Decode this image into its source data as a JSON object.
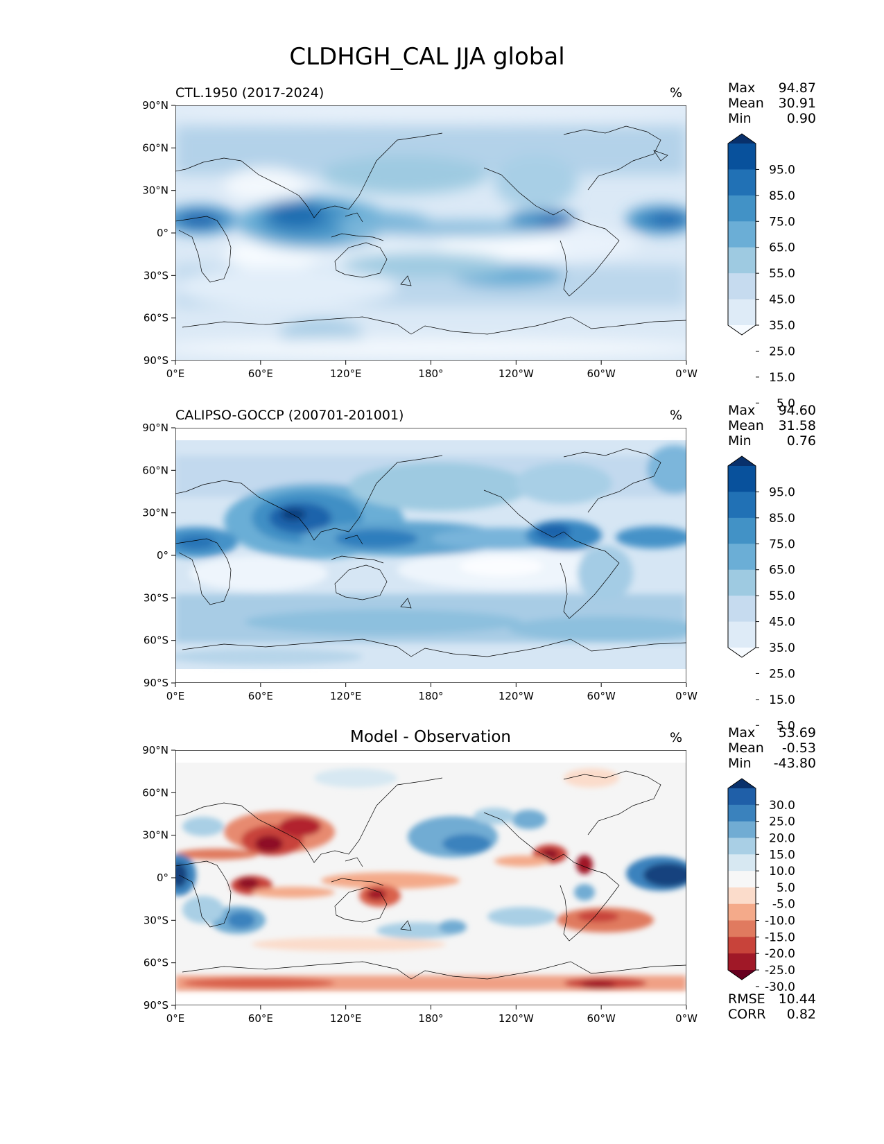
{
  "title": "CLDHGH_CAL JJA global",
  "lat_ticks": [
    "90°N",
    "60°N",
    "30°N",
    "0°",
    "30°S",
    "60°S",
    "90°S"
  ],
  "lon_ticks": [
    "0°E",
    "60°E",
    "120°E",
    "180°",
    "120°W",
    "60°W",
    "0°W"
  ],
  "panels": [
    {
      "id": "model",
      "title": "CTL.1950 (2017-2024)",
      "units": "%",
      "stats": [
        {
          "label": "Max",
          "value": "94.87"
        },
        {
          "label": "Mean",
          "value": "30.91"
        },
        {
          "label": "Min",
          "value": "0.90"
        }
      ],
      "colorbar": {
        "labels": [
          "95.0",
          "85.0",
          "75.0",
          "65.0",
          "55.0",
          "45.0",
          "35.0",
          "25.0",
          "15.0",
          "5.0"
        ],
        "colors": [
          "#08306b",
          "#08519c",
          "#2171b5",
          "#4292c6",
          "#6baed6",
          "#9ecae1",
          "#c6dbef",
          "#deebf7",
          "#f7fbff"
        ]
      }
    },
    {
      "id": "obs",
      "title": "CALIPSO-GOCCP (200701-201001)",
      "units": "%",
      "stats": [
        {
          "label": "Max",
          "value": "94.60"
        },
        {
          "label": "Mean",
          "value": "31.58"
        },
        {
          "label": "Min",
          "value": "0.76"
        }
      ],
      "colorbar": {
        "labels": [
          "95.0",
          "85.0",
          "75.0",
          "65.0",
          "55.0",
          "45.0",
          "35.0",
          "25.0",
          "15.0",
          "5.0"
        ],
        "colors": [
          "#08306b",
          "#08519c",
          "#2171b5",
          "#4292c6",
          "#6baed6",
          "#9ecae1",
          "#c6dbef",
          "#deebf7",
          "#f7fbff"
        ]
      }
    },
    {
      "id": "diff",
      "title": "Model - Observation",
      "units": "%",
      "stats": [
        {
          "label": "Max",
          "value": "53.69"
        },
        {
          "label": "Mean",
          "value": "-0.53"
        },
        {
          "label": "Min",
          "value": "-43.80"
        }
      ],
      "extra_stats": [
        {
          "label": "RMSE",
          "value": "10.44"
        },
        {
          "label": "CORR",
          "value": "0.82"
        }
      ],
      "colorbar": {
        "labels": [
          "30.0",
          "25.0",
          "20.0",
          "15.0",
          "10.0",
          "5.0",
          "-5.0",
          "-10.0",
          "-15.0",
          "-20.0",
          "-25.0",
          "-30.0"
        ],
        "colors": [
          "#08306b",
          "#1f5fa8",
          "#3a82bd",
          "#71acd3",
          "#a9cfe5",
          "#d7e8f2",
          "#f7f7f7",
          "#fbdccb",
          "#f4aa8a",
          "#e07a5f",
          "#c8433a",
          "#a01827",
          "#67001f"
        ]
      }
    }
  ],
  "chart_data": [
    {
      "type": "heatmap",
      "title": "CTL.1950 (2017-2024)",
      "variable": "CLDHGH_CAL",
      "units": "%",
      "x_range": [
        0,
        360
      ],
      "y_range": [
        -90,
        90
      ],
      "levels": [
        5,
        15,
        25,
        35,
        45,
        55,
        65,
        75,
        85,
        95
      ],
      "features": [
        {
          "lon": 105,
          "lat": 12,
          "value": 85
        },
        {
          "lon": 20,
          "lat": 5,
          "value": 75
        },
        {
          "lon": 285,
          "lat": 8,
          "value": 70
        },
        {
          "lon": 345,
          "lat": 5,
          "value": 75
        },
        {
          "lon": 150,
          "lat": 5,
          "value": 60
        },
        {
          "lon": 220,
          "lat": -25,
          "value": 45
        },
        {
          "lon": 90,
          "lat": -20,
          "value": 15
        },
        {
          "lon": 200,
          "lat": 0,
          "value": 15
        },
        {
          "lon": 180,
          "lat": 50,
          "value": 40
        },
        {
          "lon": 60,
          "lat": 25,
          "value": 10
        }
      ]
    },
    {
      "type": "heatmap",
      "title": "CALIPSO-GOCCP (200701-201001)",
      "variable": "CLDHGH_CAL",
      "units": "%",
      "x_range": [
        0,
        360
      ],
      "y_range": [
        -90,
        90
      ],
      "levels": [
        5,
        15,
        25,
        35,
        45,
        55,
        65,
        75,
        85,
        95
      ],
      "features": [
        {
          "lon": 95,
          "lat": 20,
          "value": 85
        },
        {
          "lon": 20,
          "lat": 8,
          "value": 70
        },
        {
          "lon": 280,
          "lat": 10,
          "value": 70
        },
        {
          "lon": 150,
          "lat": 8,
          "value": 65
        },
        {
          "lon": 210,
          "lat": 8,
          "value": 55
        },
        {
          "lon": 225,
          "lat": -5,
          "value": 15
        },
        {
          "lon": 100,
          "lat": -45,
          "value": 40
        },
        {
          "lon": 40,
          "lat": -15,
          "value": 15
        }
      ]
    },
    {
      "type": "heatmap",
      "title": "Model - Observation",
      "variable": "CLDHGH_CAL difference",
      "units": "%",
      "x_range": [
        0,
        360
      ],
      "y_range": [
        -90,
        90
      ],
      "levels": [
        -30,
        -25,
        -20,
        -15,
        -10,
        -5,
        5,
        10,
        15,
        20,
        25,
        30
      ],
      "features": [
        {
          "lon": 355,
          "lat": 0,
          "value": 35
        },
        {
          "lon": 5,
          "lat": 0,
          "value": 30
        },
        {
          "lon": 75,
          "lat": 28,
          "value": -30
        },
        {
          "lon": 55,
          "lat": 0,
          "value": -25
        },
        {
          "lon": 275,
          "lat": 15,
          "value": -30
        },
        {
          "lon": 290,
          "lat": 5,
          "value": -25
        },
        {
          "lon": 200,
          "lat": 20,
          "value": 20
        },
        {
          "lon": 60,
          "lat": -30,
          "value": 20
        },
        {
          "lon": 140,
          "lat": -8,
          "value": -20
        },
        {
          "lon": 320,
          "lat": -30,
          "value": -20
        },
        {
          "lon": 180,
          "lat": -80,
          "value": -20
        }
      ]
    }
  ],
  "summary_stats": {
    "model": {
      "max": 94.87,
      "mean": 30.91,
      "min": 0.9
    },
    "obs": {
      "max": 94.6,
      "mean": 31.58,
      "min": 0.76
    },
    "diff": {
      "max": 53.69,
      "mean": -0.53,
      "min": -43.8,
      "rmse": 10.44,
      "corr": 0.82
    }
  }
}
